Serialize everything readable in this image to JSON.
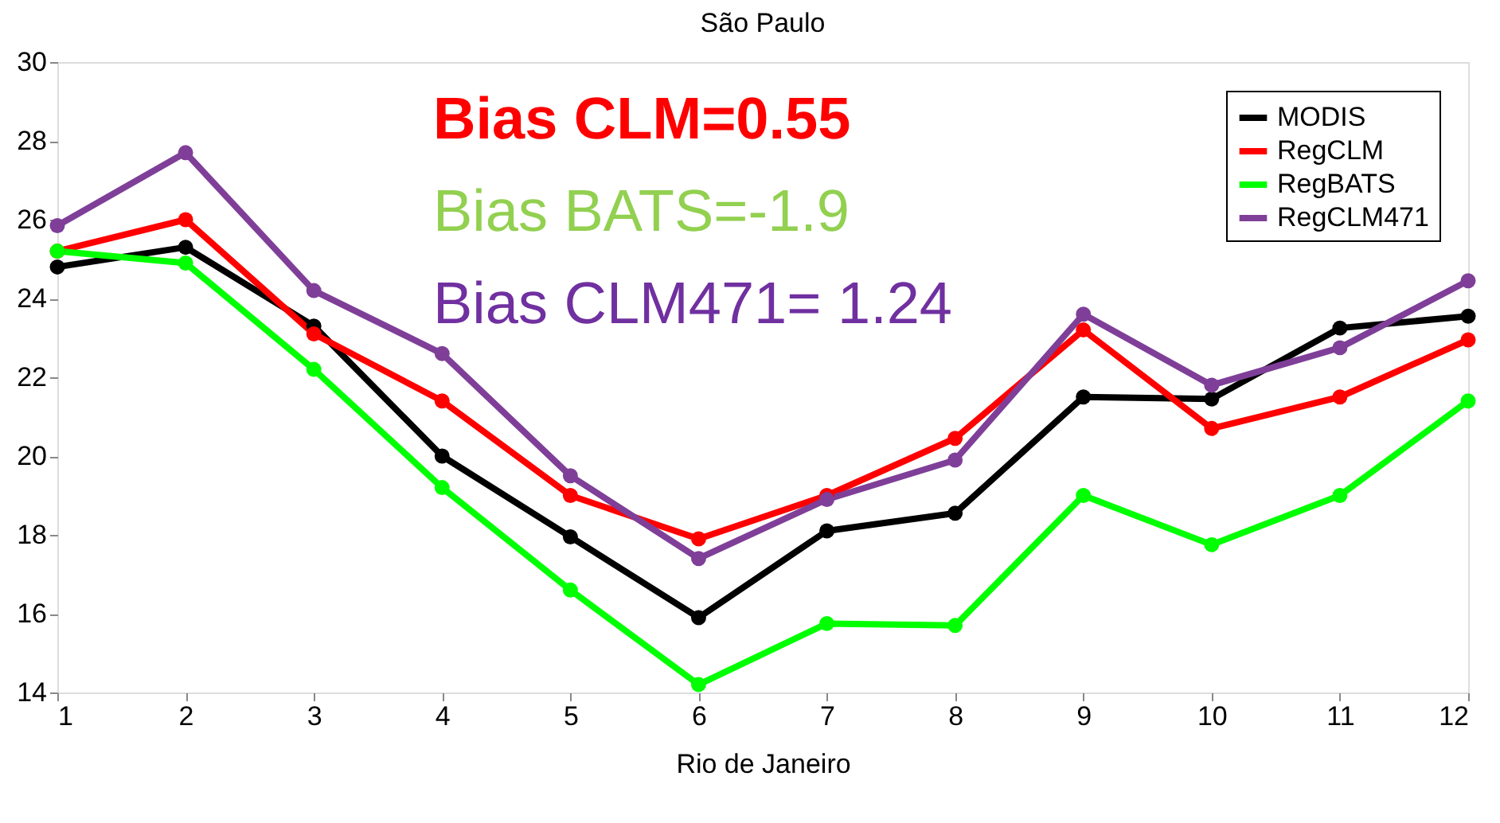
{
  "chart_data": {
    "type": "line",
    "title": "São Paulo",
    "xlabel": "Rio de Janeiro",
    "x": [
      1,
      2,
      3,
      4,
      5,
      6,
      7,
      8,
      9,
      10,
      11,
      12
    ],
    "xlim": [
      1,
      12
    ],
    "xticks": [
      1,
      2,
      3,
      4,
      5,
      6,
      7,
      8,
      9,
      10,
      11,
      12
    ],
    "ylim": [
      14,
      30
    ],
    "yticks": [
      14,
      16,
      18,
      20,
      22,
      24,
      26,
      28,
      30
    ],
    "grid": false,
    "legend": "top right",
    "marker": "circle",
    "line_style": "solid",
    "annotations": [
      "Bias CLM=0.55",
      "Bias BATS=-1.9",
      "Bias CLM471= 1.24"
    ],
    "series": [
      {
        "name": "MODIS",
        "color": "#000000",
        "values": [
          24.8,
          25.3,
          23.3,
          20.0,
          17.95,
          15.9,
          18.1,
          18.55,
          21.5,
          21.45,
          23.25,
          23.55
        ]
      },
      {
        "name": "RegCLM",
        "color": "#ff0000",
        "values": [
          25.2,
          26.0,
          23.1,
          21.4,
          19.0,
          17.9,
          19.0,
          20.45,
          23.2,
          20.7,
          21.5,
          22.95
        ]
      },
      {
        "name": "RegBATS",
        "color": "#00ff00",
        "values": [
          25.2,
          24.9,
          22.2,
          19.2,
          16.6,
          14.2,
          15.75,
          15.7,
          19.0,
          17.75,
          19.0,
          21.4
        ]
      },
      {
        "name": "RegCLM471",
        "color": "#7f3f98",
        "values": [
          25.85,
          27.7,
          24.2,
          22.6,
          19.5,
          17.4,
          18.9,
          19.9,
          23.6,
          21.8,
          22.75,
          24.45
        ]
      }
    ]
  }
}
